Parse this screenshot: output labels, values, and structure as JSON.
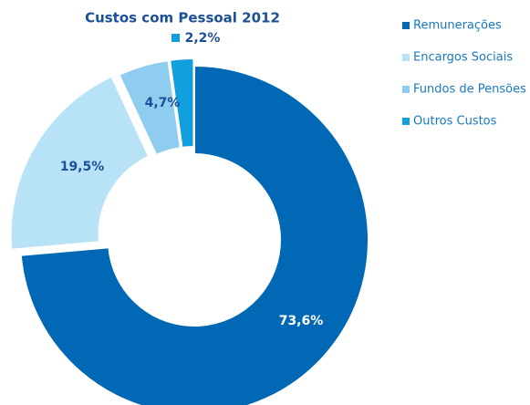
{
  "chart_data": {
    "type": "pie",
    "title": "Custos com Pessoal 2012",
    "categories": [
      "Remunerações",
      "Encargos Sociais",
      "Fundos de Pensões",
      "Outros Custos"
    ],
    "values": [
      73.6,
      19.5,
      4.7,
      2.2
    ],
    "value_labels": [
      "73,6%",
      "19,5%",
      "4,7%",
      "2,2%"
    ],
    "colors": [
      "#0068b4",
      "#b8e3f7",
      "#8fcdf0",
      "#119fde"
    ],
    "legend": "right"
  }
}
